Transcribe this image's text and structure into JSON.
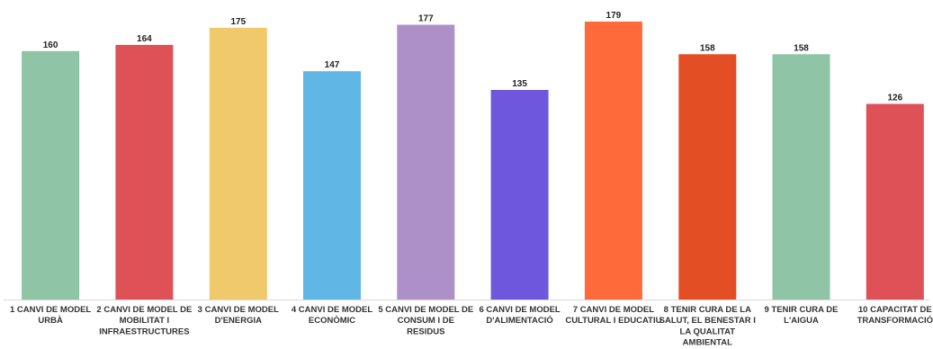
{
  "chart_data": {
    "type": "bar",
    "title": "",
    "xlabel": "",
    "ylabel": "",
    "ylim": [
      0,
      179
    ],
    "grid": false,
    "legend": "none",
    "categories": [
      [
        "1 CANVI DE MODEL",
        "URBÀ"
      ],
      [
        "2 CANVI DE MODEL DE",
        "MOBILITAT I",
        "INFRAESTRUCTURES"
      ],
      [
        "3 CANVI DE MODEL",
        "D'ENERGIA"
      ],
      [
        "4 CANVI DE MODEL",
        "ECONÒMIC"
      ],
      [
        "5 CANVI DE MODEL DE",
        "CONSUM I DE",
        "RESIDUS"
      ],
      [
        "6 CANVI DE MODEL",
        "D'ALIMENTACIÓ"
      ],
      [
        "7 CANVI DE MODEL",
        "CULTURAL I EDUCATIU"
      ],
      [
        "8 TENIR CURA DE LA",
        "SALUT, EL BENESTAR I",
        "LA QUALITAT",
        "AMBIENTAL"
      ],
      [
        "9 TENIR CURA DE",
        "L'AIGUA"
      ],
      [
        "10 CAPACITAT DE",
        "TRANSFORMACIÓ"
      ]
    ],
    "values": [
      160,
      164,
      175,
      147,
      177,
      135,
      179,
      158,
      158,
      126
    ],
    "colors": [
      "#8fc4a6",
      "#de5157",
      "#f0c96d",
      "#60b6e5",
      "#ad90c8",
      "#6e57dc",
      "#ff6a3a",
      "#e34e25",
      "#8fc4a6",
      "#de5157"
    ]
  }
}
